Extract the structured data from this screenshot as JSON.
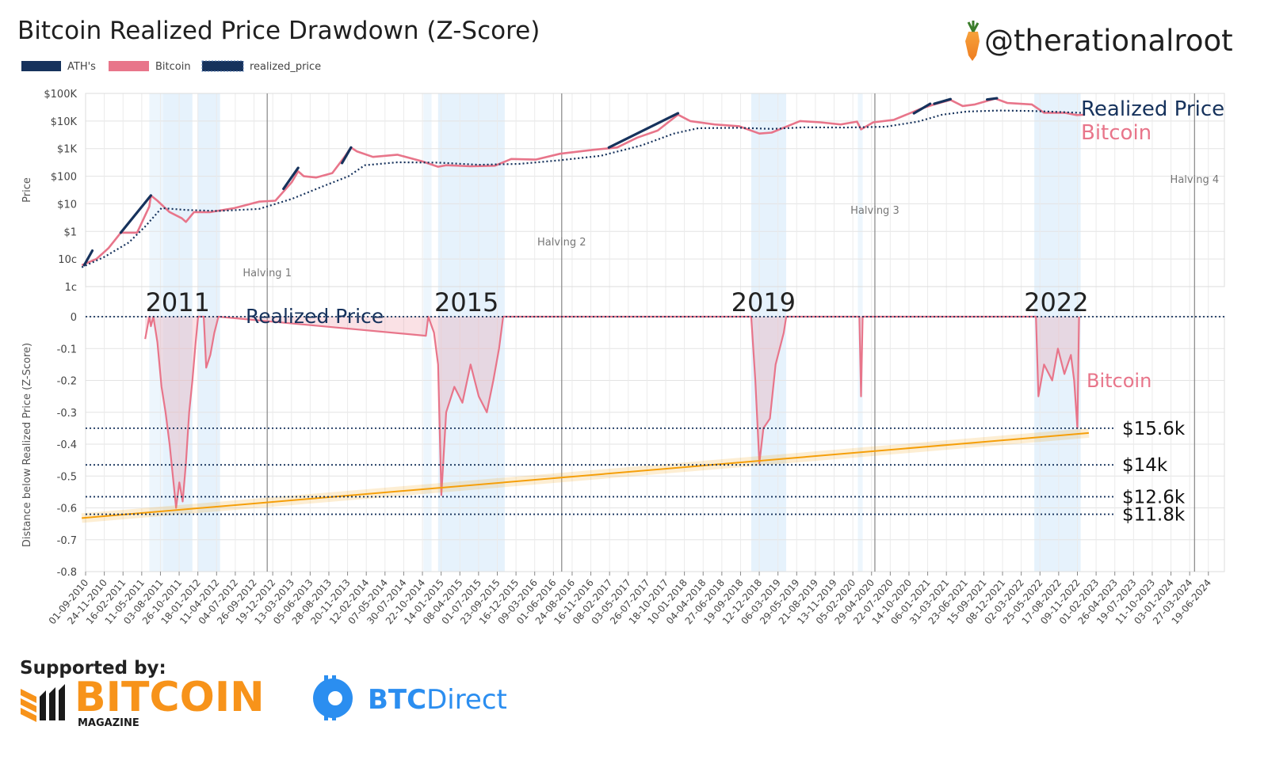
{
  "header": {
    "title": "Bitcoin Realized Price Drawdown (Z-Score)",
    "handle": "@therationalroot"
  },
  "legend": [
    {
      "label": "ATH's",
      "color": "#16325c"
    },
    {
      "label": "Bitcoin",
      "color": "#e8758a"
    },
    {
      "label": "realized_price",
      "color": "#16325c"
    }
  ],
  "colors": {
    "realized": "#16325c",
    "bitcoin": "#e8758a",
    "ath": "#16325c",
    "trend": "#f59f0a",
    "band": "#e6f2fc"
  },
  "chart_data": [
    {
      "type": "line",
      "title": "",
      "ylabel": "Price",
      "yscale": "log",
      "ylim": [
        0.01,
        100000
      ],
      "ytick_labels": [
        "$100K",
        "$10K",
        "$1K",
        "$100",
        "$10",
        "$1",
        "10c",
        "1c"
      ],
      "ytick_values": [
        100000,
        10000,
        1000,
        100,
        10,
        1,
        0.1,
        0.01
      ],
      "series": [
        {
          "name": "Bitcoin",
          "points": [
            [
              2010.62,
              0.06
            ],
            [
              2010.8,
              0.1
            ],
            [
              2010.95,
              0.25
            ],
            [
              2011.1,
              0.9
            ],
            [
              2011.3,
              0.9
            ],
            [
              2011.45,
              8
            ],
            [
              2011.47,
              20
            ],
            [
              2011.55,
              13
            ],
            [
              2011.7,
              5
            ],
            [
              2011.85,
              3
            ],
            [
              2011.9,
              2.2
            ],
            [
              2012.0,
              5
            ],
            [
              2012.2,
              5
            ],
            [
              2012.5,
              7
            ],
            [
              2012.8,
              12
            ],
            [
              2013.0,
              13
            ],
            [
              2013.2,
              60
            ],
            [
              2013.28,
              150
            ],
            [
              2013.35,
              100
            ],
            [
              2013.5,
              90
            ],
            [
              2013.7,
              130
            ],
            [
              2013.85,
              500
            ],
            [
              2013.93,
              1100
            ],
            [
              2014.0,
              800
            ],
            [
              2014.2,
              500
            ],
            [
              2014.5,
              600
            ],
            [
              2014.8,
              350
            ],
            [
              2015.0,
              220
            ],
            [
              2015.1,
              250
            ],
            [
              2015.4,
              230
            ],
            [
              2015.7,
              240
            ],
            [
              2015.9,
              420
            ],
            [
              2016.2,
              400
            ],
            [
              2016.5,
              650
            ],
            [
              2016.9,
              900
            ],
            [
              2017.2,
              1100
            ],
            [
              2017.45,
              2500
            ],
            [
              2017.7,
              4500
            ],
            [
              2017.95,
              17000
            ],
            [
              2018.1,
              10000
            ],
            [
              2018.4,
              7500
            ],
            [
              2018.7,
              6500
            ],
            [
              2018.95,
              3500
            ],
            [
              2019.1,
              3800
            ],
            [
              2019.45,
              10000
            ],
            [
              2019.7,
              9000
            ],
            [
              2019.95,
              7500
            ],
            [
              2020.15,
              9500
            ],
            [
              2020.2,
              5000
            ],
            [
              2020.35,
              9000
            ],
            [
              2020.6,
              11000
            ],
            [
              2020.95,
              29000
            ],
            [
              2021.1,
              40000
            ],
            [
              2021.3,
              58000
            ],
            [
              2021.45,
              35000
            ],
            [
              2021.6,
              40000
            ],
            [
              2021.85,
              65000
            ],
            [
              2022.0,
              45000
            ],
            [
              2022.3,
              40000
            ],
            [
              2022.45,
              20000
            ],
            [
              2022.7,
              20000
            ],
            [
              2022.85,
              16500
            ],
            [
              2022.95,
              16800
            ]
          ]
        },
        {
          "name": "realized_price",
          "points": [
            [
              2010.62,
              0.05
            ],
            [
              2010.9,
              0.12
            ],
            [
              2011.2,
              0.4
            ],
            [
              2011.4,
              1.5
            ],
            [
              2011.6,
              7
            ],
            [
              2011.9,
              6
            ],
            [
              2012.3,
              5.5
            ],
            [
              2012.8,
              6.5
            ],
            [
              2013.2,
              15
            ],
            [
              2013.6,
              45
            ],
            [
              2013.9,
              100
            ],
            [
              2014.1,
              250
            ],
            [
              2014.5,
              320
            ],
            [
              2015.0,
              310
            ],
            [
              2015.5,
              260
            ],
            [
              2016.0,
              280
            ],
            [
              2016.5,
              380
            ],
            [
              2017.0,
              550
            ],
            [
              2017.5,
              1300
            ],
            [
              2017.9,
              3500
            ],
            [
              2018.2,
              5500
            ],
            [
              2018.7,
              5700
            ],
            [
              2019.1,
              5200
            ],
            [
              2019.5,
              5900
            ],
            [
              2020.0,
              5800
            ],
            [
              2020.5,
              6200
            ],
            [
              2020.9,
              9500
            ],
            [
              2021.2,
              17000
            ],
            [
              2021.5,
              22000
            ],
            [
              2021.9,
              24000
            ],
            [
              2022.3,
              23000
            ],
            [
              2022.5,
              22000
            ],
            [
              2022.95,
              19500
            ]
          ]
        },
        {
          "name": "ATH's",
          "segments": [
            [
              [
                2010.65,
                0.06
              ],
              [
                2010.75,
                0.2
              ]
            ],
            [
              [
                2011.1,
                0.9
              ],
              [
                2011.47,
                20
              ]
            ],
            [
              [
                2013.1,
                35
              ],
              [
                2013.28,
                200
              ]
            ],
            [
              [
                2013.82,
                300
              ],
              [
                2013.93,
                1100
              ]
            ],
            [
              [
                2017.1,
                1100
              ],
              [
                2017.95,
                19000
              ]
            ],
            [
              [
                2020.85,
                19000
              ],
              [
                2021.05,
                42000
              ]
            ],
            [
              [
                2021.1,
                42000
              ],
              [
                2021.3,
                62000
              ]
            ],
            [
              [
                2021.75,
                60000
              ],
              [
                2021.87,
                67000
              ]
            ]
          ]
        }
      ]
    },
    {
      "type": "area",
      "ylabel": "Distance below Realized Price (Z-Score)",
      "ylim": [
        -0.8,
        0
      ],
      "ytick_labels": [
        "0",
        "-0.1",
        "-0.2",
        "-0.3",
        "-0.4",
        "-0.5",
        "-0.6",
        "-0.7",
        "-0.8"
      ],
      "ytick_values": [
        0,
        -0.1,
        -0.2,
        -0.3,
        -0.4,
        -0.5,
        -0.6,
        -0.7,
        -0.8
      ],
      "xlim": [
        "2010-09-01",
        "2024-09-01"
      ],
      "xtick_labels": [
        "01-09-2010",
        "24-11-2010",
        "16-02-2011",
        "11-05-2011",
        "03-08-2011",
        "26-10-2011",
        "18-01-2012",
        "11-04-2012",
        "04-07-2012",
        "26-09-2012",
        "19-12-2012",
        "13-03-2013",
        "05-06-2013",
        "28-08-2013",
        "20-11-2013",
        "12-02-2014",
        "07-05-2014",
        "30-07-2014",
        "22-10-2014",
        "14-01-2015",
        "08-04-2015",
        "01-07-2015",
        "23-09-2015",
        "16-12-2015",
        "09-03-2016",
        "01-06-2016",
        "24-08-2016",
        "16-11-2016",
        "08-02-2017",
        "03-05-2017",
        "26-07-2017",
        "18-10-2017",
        "10-01-2018",
        "04-04-2018",
        "27-06-2018",
        "19-09-2018",
        "12-12-2018",
        "06-03-2019",
        "29-05-2019",
        "21-08-2019",
        "13-11-2019",
        "05-02-2020",
        "29-04-2020",
        "22-07-2020",
        "14-10-2020",
        "06-01-2021",
        "31-03-2021",
        "23-06-2021",
        "15-09-2021",
        "08-12-2021",
        "02-03-2022",
        "25-05-2022",
        "17-08-2022",
        "09-11-2022",
        "01-02-2023",
        "26-04-2023",
        "19-07-2023",
        "11-10-2023",
        "03-01-2024",
        "27-03-2024",
        "19-06-2024"
      ],
      "bitcoin_drawdown": [
        [
          2011.4,
          -0.07
        ],
        [
          2011.45,
          0
        ],
        [
          2011.47,
          -0.03
        ],
        [
          2011.5,
          0
        ],
        [
          2011.55,
          -0.08
        ],
        [
          2011.6,
          -0.22
        ],
        [
          2011.65,
          -0.3
        ],
        [
          2011.7,
          -0.4
        ],
        [
          2011.78,
          -0.6
        ],
        [
          2011.82,
          -0.52
        ],
        [
          2011.86,
          -0.58
        ],
        [
          2011.9,
          -0.46
        ],
        [
          2011.94,
          -0.3
        ],
        [
          2011.98,
          -0.2
        ],
        [
          2012.02,
          -0.08
        ],
        [
          2012.05,
          0
        ],
        [
          2012.12,
          0
        ],
        [
          2012.15,
          -0.16
        ],
        [
          2012.2,
          -0.12
        ],
        [
          2012.25,
          -0.05
        ],
        [
          2012.3,
          0
        ],
        [
          2014.85,
          -0.06
        ],
        [
          2014.88,
          0
        ],
        [
          2014.95,
          -0.05
        ],
        [
          2015.0,
          -0.15
        ],
        [
          2015.04,
          -0.56
        ],
        [
          2015.1,
          -0.3
        ],
        [
          2015.2,
          -0.22
        ],
        [
          2015.3,
          -0.27
        ],
        [
          2015.4,
          -0.15
        ],
        [
          2015.5,
          -0.25
        ],
        [
          2015.6,
          -0.3
        ],
        [
          2015.68,
          -0.2
        ],
        [
          2015.75,
          -0.1
        ],
        [
          2015.8,
          0
        ],
        [
          2018.85,
          0
        ],
        [
          2018.9,
          -0.2
        ],
        [
          2018.95,
          -0.46
        ],
        [
          2019.0,
          -0.35
        ],
        [
          2019.08,
          -0.32
        ],
        [
          2019.15,
          -0.15
        ],
        [
          2019.25,
          -0.05
        ],
        [
          2019.28,
          0
        ],
        [
          2020.18,
          0
        ],
        [
          2020.2,
          -0.25
        ],
        [
          2020.22,
          0
        ],
        [
          2022.35,
          0
        ],
        [
          2022.38,
          -0.25
        ],
        [
          2022.45,
          -0.15
        ],
        [
          2022.55,
          -0.2
        ],
        [
          2022.62,
          -0.1
        ],
        [
          2022.7,
          -0.18
        ],
        [
          2022.78,
          -0.12
        ],
        [
          2022.82,
          -0.2
        ],
        [
          2022.86,
          -0.35
        ],
        [
          2022.88,
          0
        ]
      ],
      "trend_line": [
        [
          2010.62,
          -0.632
        ],
        [
          2023.0,
          -0.365
        ]
      ],
      "reference_lines": [
        {
          "label": "Realized Price",
          "value": 0
        },
        {
          "label": "$15.6k",
          "value": -0.35
        },
        {
          "label": "$14k",
          "value": -0.465
        },
        {
          "label": "$12.6k",
          "value": -0.565
        },
        {
          "label": "$11.8k",
          "value": -0.62
        }
      ],
      "cycle_labels": [
        "2011",
        "2015",
        "2019",
        "2022"
      ],
      "series_label": "Bitcoin"
    }
  ],
  "annotations": {
    "halvings": [
      "Halving 1",
      "Halving 2",
      "Halving 3",
      "Halving 4"
    ],
    "realized_price_label": "Realized Price",
    "bitcoin_label": "Bitcoin"
  },
  "footer": {
    "supported_by": "Supported by:",
    "sponsor1_name": "BITCOIN",
    "sponsor1_sub": "MAGAZINE",
    "sponsor2_prefix": "BTC",
    "sponsor2_suffix": "Direct"
  }
}
